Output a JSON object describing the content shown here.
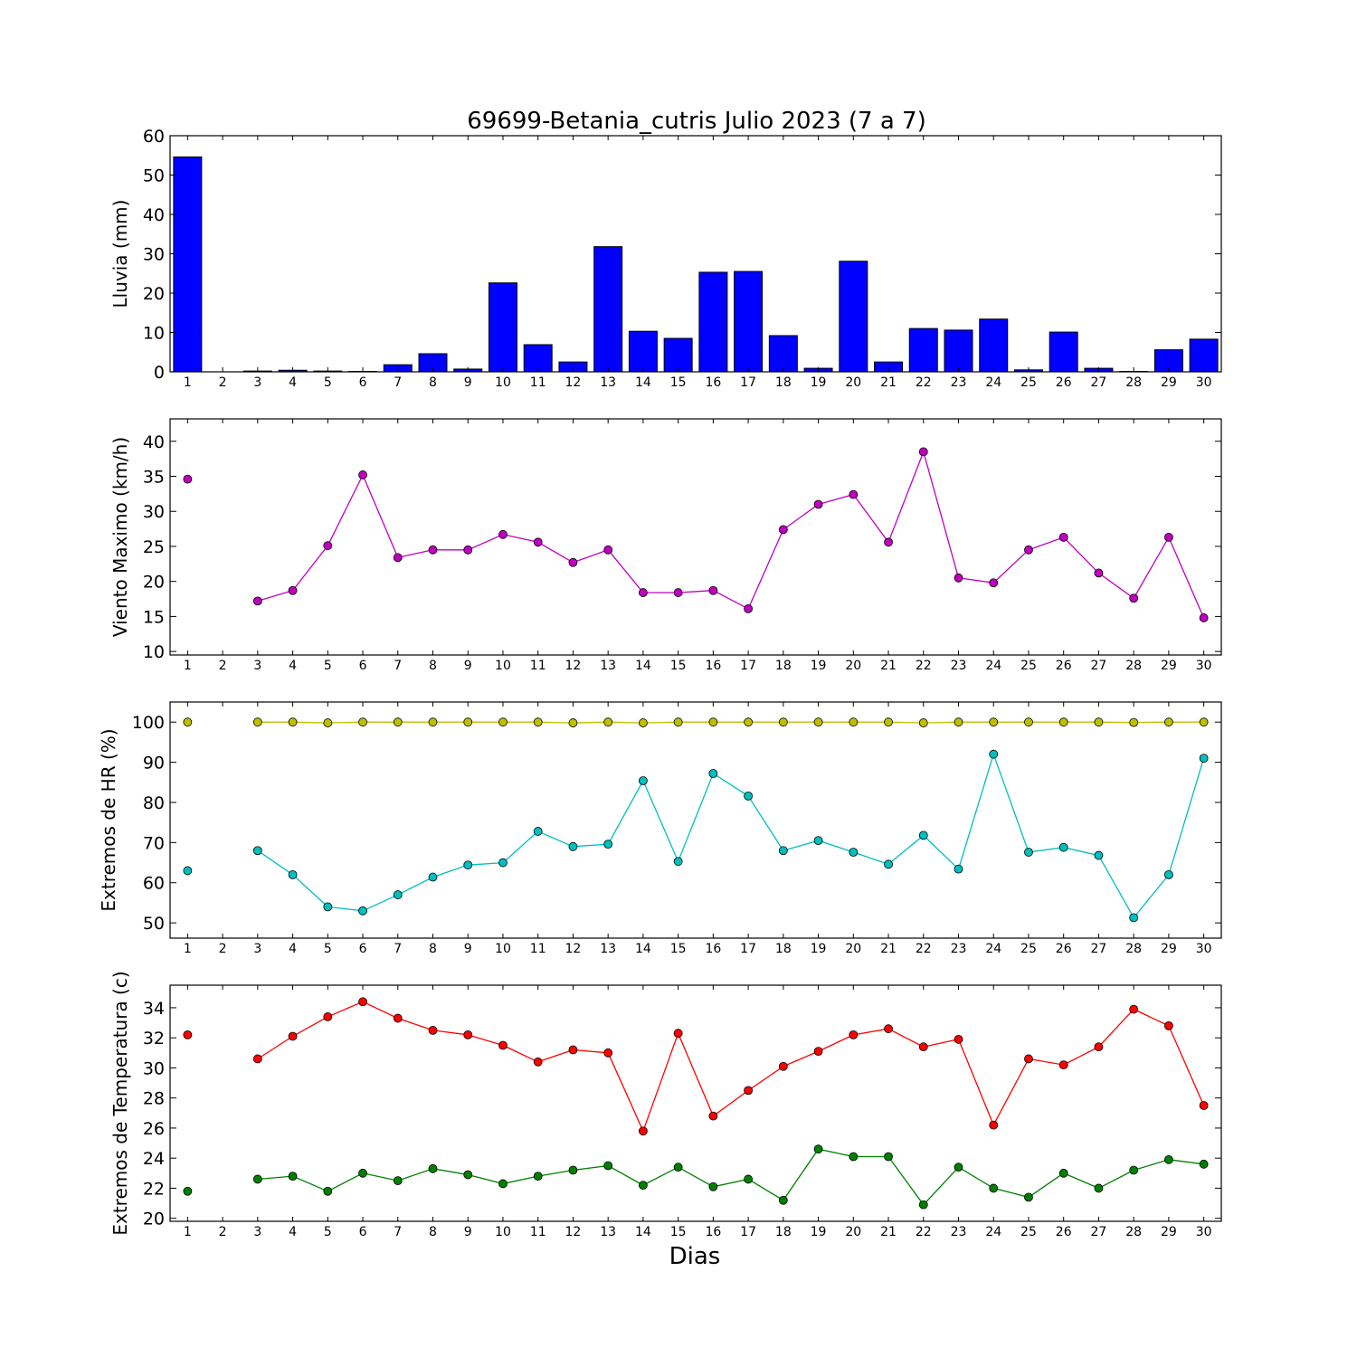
{
  "title": "69699-Betania_cutris Julio 2023  (7 a 7)",
  "xlabel": "Dias",
  "chart_data": [
    {
      "type": "bar",
      "ylabel": "Lluvia (mm)",
      "categories": [
        1,
        2,
        3,
        4,
        5,
        6,
        7,
        8,
        9,
        10,
        11,
        12,
        13,
        14,
        15,
        16,
        17,
        18,
        19,
        20,
        21,
        22,
        23,
        24,
        25,
        26,
        27,
        28,
        29,
        30
      ],
      "ylim": [
        0,
        60
      ],
      "yticks": [
        0,
        10,
        20,
        30,
        40,
        50,
        60
      ],
      "series": [
        {
          "color": "#0000ff",
          "values": [
            54.6,
            0,
            0.2,
            0.4,
            0.2,
            0.1,
            1.8,
            4.6,
            0.7,
            22.6,
            6.9,
            2.5,
            31.8,
            10.3,
            8.5,
            25.3,
            25.5,
            9.2,
            0.9,
            28.1,
            2.5,
            11.0,
            10.6,
            13.4,
            0.5,
            10.1,
            0.9,
            0.1,
            5.6,
            8.3
          ]
        }
      ]
    },
    {
      "type": "line",
      "ylabel": "Viento Maximo (km/h)",
      "categories": [
        1,
        2,
        3,
        4,
        5,
        6,
        7,
        8,
        9,
        10,
        11,
        12,
        13,
        14,
        15,
        16,
        17,
        18,
        19,
        20,
        21,
        22,
        23,
        24,
        25,
        26,
        27,
        28,
        29,
        30
      ],
      "ylim": [
        9.5,
        43.2
      ],
      "yticks": [
        10,
        15,
        20,
        25,
        30,
        35,
        40
      ],
      "series": [
        {
          "color": "#bf00bf",
          "values": [
            34.6,
            null,
            17.2,
            18.7,
            25.1,
            35.2,
            23.4,
            24.5,
            24.5,
            26.7,
            25.6,
            22.7,
            24.5,
            18.4,
            18.4,
            18.7,
            16.1,
            27.4,
            31.0,
            32.4,
            25.6,
            38.5,
            20.5,
            19.8,
            24.5,
            26.3,
            21.2,
            17.6,
            26.3,
            14.8
          ]
        }
      ]
    },
    {
      "type": "line",
      "ylabel": "Extremos de HR (%)",
      "categories": [
        1,
        2,
        3,
        4,
        5,
        6,
        7,
        8,
        9,
        10,
        11,
        12,
        13,
        14,
        15,
        16,
        17,
        18,
        19,
        20,
        21,
        22,
        23,
        24,
        25,
        26,
        27,
        28,
        29,
        30
      ],
      "ylim": [
        46.2,
        105
      ],
      "yticks": [
        50,
        60,
        70,
        80,
        90,
        100
      ],
      "series": [
        {
          "color": "#bfbf00",
          "values": [
            100,
            null,
            100,
            100,
            99.8,
            100,
            100,
            100,
            100,
            100,
            100,
            99.8,
            100,
            99.8,
            100,
            100,
            100,
            100,
            100,
            100,
            100,
            99.8,
            100,
            100,
            100,
            100,
            100,
            99.9,
            100,
            100
          ]
        },
        {
          "color": "#00bfbf",
          "values": [
            63.0,
            null,
            68.0,
            62.0,
            54.0,
            53.0,
            57.0,
            61.4,
            64.4,
            65.0,
            72.8,
            69.0,
            69.6,
            85.4,
            65.3,
            87.2,
            81.6,
            68.0,
            70.5,
            67.6,
            64.6,
            71.8,
            63.4,
            92.0,
            67.6,
            68.8,
            66.8,
            51.3,
            62.0,
            91.0
          ]
        }
      ]
    },
    {
      "type": "line",
      "ylabel": "Extremos de Temperatura (c)",
      "categories": [
        1,
        2,
        3,
        4,
        5,
        6,
        7,
        8,
        9,
        10,
        11,
        12,
        13,
        14,
        15,
        16,
        17,
        18,
        19,
        20,
        21,
        22,
        23,
        24,
        25,
        26,
        27,
        28,
        29,
        30
      ],
      "ylim": [
        19.8,
        35.5
      ],
      "yticks": [
        20,
        22,
        24,
        26,
        28,
        30,
        32,
        34
      ],
      "series": [
        {
          "color": "#ff0000",
          "values": [
            32.2,
            null,
            30.6,
            32.1,
            33.4,
            34.4,
            33.3,
            32.5,
            32.2,
            31.5,
            30.4,
            31.2,
            31.0,
            25.8,
            32.3,
            26.8,
            28.5,
            30.1,
            31.1,
            32.2,
            32.6,
            31.4,
            31.9,
            26.2,
            30.6,
            30.2,
            31.4,
            33.9,
            32.8,
            27.5
          ]
        },
        {
          "color": "#008000",
          "values": [
            21.8,
            null,
            22.6,
            22.8,
            21.8,
            23.0,
            22.5,
            23.3,
            22.9,
            22.3,
            22.8,
            23.2,
            23.5,
            22.2,
            23.4,
            22.1,
            22.6,
            21.2,
            24.6,
            24.1,
            24.1,
            20.9,
            23.4,
            22.0,
            21.4,
            23.0,
            22.0,
            23.2,
            23.9,
            23.6
          ]
        }
      ]
    }
  ]
}
